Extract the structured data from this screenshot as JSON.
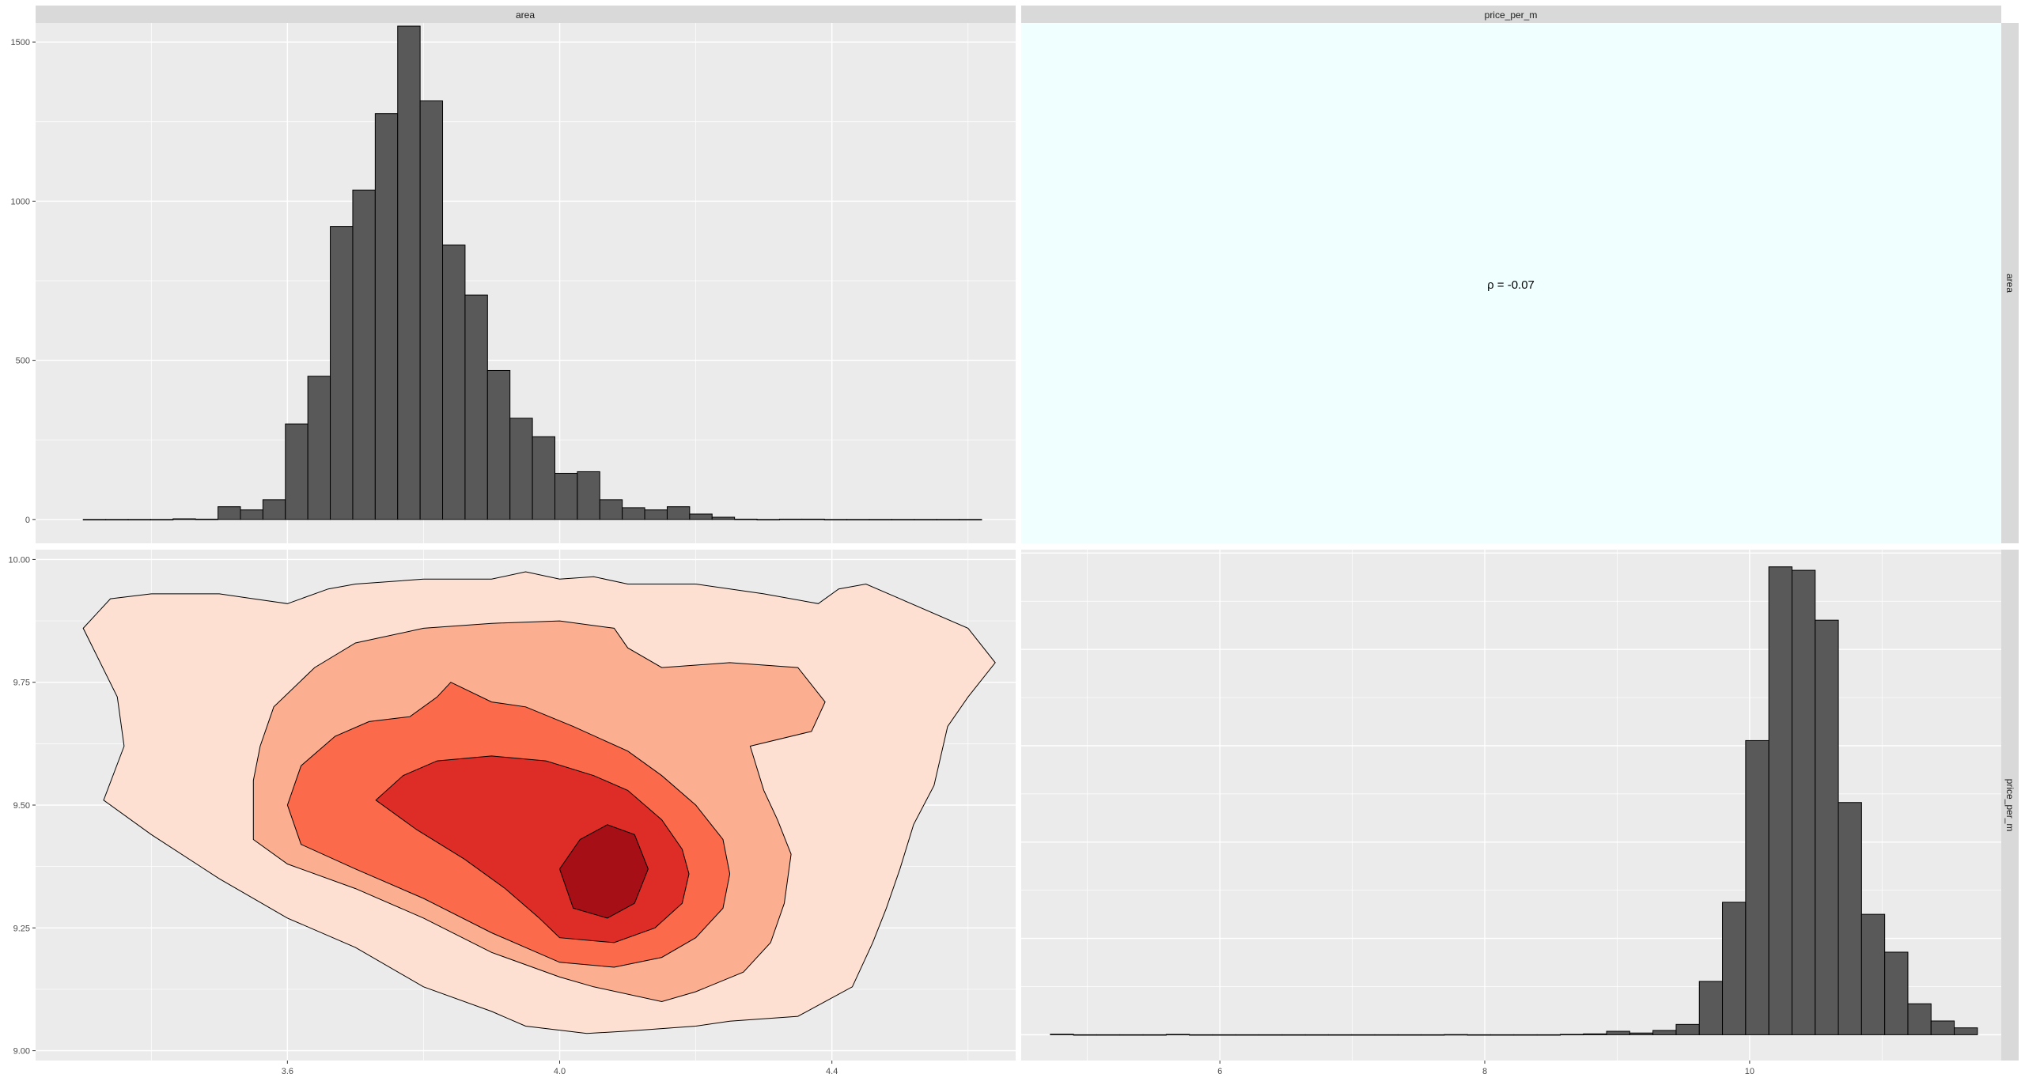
{
  "strips": {
    "col1": "area",
    "col2": "price_per_m",
    "row1": "area",
    "row2": "price_per_m"
  },
  "correlation_label": "ρ = -0.07",
  "colors": {
    "panel_bg": "#ebebeb",
    "corr_bg": "#f0ffff",
    "strip_bg": "#d9d9d9",
    "grid": "#ffffff",
    "bar_fill": "#595959",
    "bar_stroke": "#000000",
    "density_levels": [
      "#fee0d2",
      "#fcae91",
      "#fb6a4a",
      "#de2d26",
      "#a50f15"
    ]
  },
  "chart_data": [
    {
      "type": "bar",
      "panel": "area x area",
      "x_ticks": [
        3.6,
        4.0,
        4.4
      ],
      "y_ticks": [
        0,
        500,
        1000,
        1500
      ],
      "xlim": [
        3.23,
        4.67
      ],
      "ylim": [
        -75,
        1560
      ],
      "bin_width": 0.033,
      "bins_x": [
        3.3,
        3.333,
        3.366,
        3.399,
        3.432,
        3.465,
        3.498,
        3.531,
        3.564,
        3.597,
        3.63,
        3.663,
        3.696,
        3.729,
        3.762,
        3.795,
        3.828,
        3.861,
        3.894,
        3.927,
        3.96,
        3.993,
        4.026,
        4.059,
        4.092,
        4.125,
        4.158,
        4.191,
        4.224,
        4.257,
        4.29,
        4.323,
        4.356,
        4.389,
        4.422,
        4.455,
        4.488,
        4.521,
        4.554,
        4.587
      ],
      "values": [
        0,
        0,
        0,
        0,
        2,
        1,
        40,
        30,
        62,
        300,
        450,
        920,
        1035,
        1275,
        1550,
        1315,
        862,
        705,
        468,
        318,
        260,
        145,
        150,
        62,
        37,
        30,
        40,
        17,
        7,
        1,
        0,
        1,
        1,
        0,
        0,
        0,
        0,
        0,
        0,
        0
      ]
    },
    {
      "type": "bar",
      "panel": "price_per_m x price_per_m",
      "x_ticks": [
        6,
        8,
        10
      ],
      "xlim": [
        4.5,
        11.9
      ],
      "ylim": [
        -150,
        2820
      ],
      "bin_width": 0.175,
      "bins_x": [
        4.72,
        4.895,
        5.07,
        5.245,
        5.42,
        5.595,
        5.77,
        5.945,
        6.12,
        6.295,
        6.47,
        6.645,
        6.82,
        6.995,
        7.17,
        7.345,
        7.52,
        7.695,
        7.87,
        8.045,
        8.22,
        8.395,
        8.57,
        8.745,
        8.92,
        9.095,
        9.27,
        9.445,
        9.62,
        9.795,
        9.97,
        10.145,
        10.32,
        10.495,
        10.67,
        10.845,
        11.02,
        11.195,
        11.37,
        11.545
      ],
      "values": [
        3,
        0,
        0,
        0,
        0,
        2,
        0,
        0,
        0,
        0,
        0,
        0,
        0,
        0,
        0,
        0,
        0,
        1,
        0,
        0,
        0,
        0,
        2,
        5,
        20,
        10,
        25,
        60,
        310,
        770,
        1710,
        2720,
        2700,
        2410,
        1350,
        700,
        480,
        180,
        80,
        40
      ]
    },
    {
      "type": "area",
      "subtype": "density_contour",
      "panel": "area (x) vs price_per_m (y)",
      "x_ticks": [
        3.6,
        4.0,
        4.4
      ],
      "y_ticks": [
        9.0,
        9.25,
        9.5,
        9.75,
        10.0
      ],
      "xlim": [
        3.23,
        4.67
      ],
      "ylim": [
        8.98,
        10.02
      ],
      "levels": [
        [
          [
            3.3,
            9.86
          ],
          [
            3.34,
            9.92
          ],
          [
            3.4,
            9.93
          ],
          [
            3.5,
            9.93
          ],
          [
            3.55,
            9.92
          ],
          [
            3.6,
            9.91
          ],
          [
            3.66,
            9.94
          ],
          [
            3.7,
            9.95
          ],
          [
            3.8,
            9.96
          ],
          [
            3.9,
            9.96
          ],
          [
            3.95,
            9.975
          ],
          [
            4.0,
            9.96
          ],
          [
            4.05,
            9.965
          ],
          [
            4.1,
            9.95
          ],
          [
            4.2,
            9.95
          ],
          [
            4.3,
            9.93
          ],
          [
            4.38,
            9.91
          ],
          [
            4.41,
            9.94
          ],
          [
            4.45,
            9.95
          ],
          [
            4.5,
            9.92
          ],
          [
            4.6,
            9.86
          ],
          [
            4.64,
            9.79
          ],
          [
            4.6,
            9.72
          ],
          [
            4.57,
            9.66
          ],
          [
            4.55,
            9.54
          ],
          [
            4.52,
            9.46
          ],
          [
            4.5,
            9.37
          ],
          [
            4.48,
            9.29
          ],
          [
            4.46,
            9.22
          ],
          [
            4.43,
            9.13
          ],
          [
            4.35,
            9.07
          ],
          [
            4.25,
            9.06
          ],
          [
            4.2,
            9.05
          ],
          [
            4.1,
            9.04
          ],
          [
            4.04,
            9.035
          ],
          [
            3.95,
            9.05
          ],
          [
            3.9,
            9.08
          ],
          [
            3.8,
            9.13
          ],
          [
            3.7,
            9.21
          ],
          [
            3.6,
            9.27
          ],
          [
            3.5,
            9.35
          ],
          [
            3.4,
            9.44
          ],
          [
            3.33,
            9.51
          ],
          [
            3.36,
            9.62
          ],
          [
            3.35,
            9.72
          ]
        ],
        [
          [
            3.55,
            9.43
          ],
          [
            3.55,
            9.55
          ],
          [
            3.56,
            9.62
          ],
          [
            3.58,
            9.7
          ],
          [
            3.64,
            9.78
          ],
          [
            3.7,
            9.83
          ],
          [
            3.8,
            9.86
          ],
          [
            3.9,
            9.87
          ],
          [
            4.0,
            9.875
          ],
          [
            4.08,
            9.86
          ],
          [
            4.1,
            9.82
          ],
          [
            4.15,
            9.78
          ],
          [
            4.25,
            9.79
          ],
          [
            4.35,
            9.78
          ],
          [
            4.39,
            9.71
          ],
          [
            4.37,
            9.65
          ],
          [
            4.28,
            9.62
          ],
          [
            4.3,
            9.53
          ],
          [
            4.32,
            9.47
          ],
          [
            4.34,
            9.4
          ],
          [
            4.33,
            9.3
          ],
          [
            4.31,
            9.22
          ],
          [
            4.27,
            9.16
          ],
          [
            4.2,
            9.12
          ],
          [
            4.15,
            9.1
          ],
          [
            4.05,
            9.13
          ],
          [
            4.0,
            9.15
          ],
          [
            3.9,
            9.2
          ],
          [
            3.8,
            9.27
          ],
          [
            3.7,
            9.33
          ],
          [
            3.6,
            9.38
          ]
        ],
        [
          [
            3.62,
            9.42
          ],
          [
            3.6,
            9.5
          ],
          [
            3.62,
            9.58
          ],
          [
            3.67,
            9.64
          ],
          [
            3.72,
            9.67
          ],
          [
            3.78,
            9.68
          ],
          [
            3.82,
            9.72
          ],
          [
            3.84,
            9.75
          ],
          [
            3.9,
            9.71
          ],
          [
            3.95,
            9.7
          ],
          [
            4.02,
            9.66
          ],
          [
            4.1,
            9.61
          ],
          [
            4.15,
            9.56
          ],
          [
            4.2,
            9.5
          ],
          [
            4.24,
            9.43
          ],
          [
            4.25,
            9.36
          ],
          [
            4.24,
            9.29
          ],
          [
            4.2,
            9.23
          ],
          [
            4.15,
            9.19
          ],
          [
            4.08,
            9.17
          ],
          [
            4.0,
            9.18
          ],
          [
            3.9,
            9.24
          ],
          [
            3.8,
            9.31
          ],
          [
            3.7,
            9.37
          ]
        ],
        [
          [
            3.73,
            9.51
          ],
          [
            3.77,
            9.56
          ],
          [
            3.82,
            9.59
          ],
          [
            3.9,
            9.6
          ],
          [
            3.98,
            9.59
          ],
          [
            4.05,
            9.56
          ],
          [
            4.1,
            9.53
          ],
          [
            4.15,
            9.47
          ],
          [
            4.18,
            9.41
          ],
          [
            4.19,
            9.36
          ],
          [
            4.18,
            9.3
          ],
          [
            4.14,
            9.25
          ],
          [
            4.08,
            9.22
          ],
          [
            4.0,
            9.23
          ],
          [
            3.97,
            9.27
          ],
          [
            3.92,
            9.33
          ],
          [
            3.86,
            9.39
          ],
          [
            3.79,
            9.45
          ]
        ],
        [
          [
            4.0,
            9.37
          ],
          [
            4.03,
            9.43
          ],
          [
            4.07,
            9.46
          ],
          [
            4.11,
            9.44
          ],
          [
            4.13,
            9.37
          ],
          [
            4.11,
            9.3
          ],
          [
            4.07,
            9.27
          ],
          [
            4.02,
            9.29
          ]
        ]
      ]
    }
  ]
}
